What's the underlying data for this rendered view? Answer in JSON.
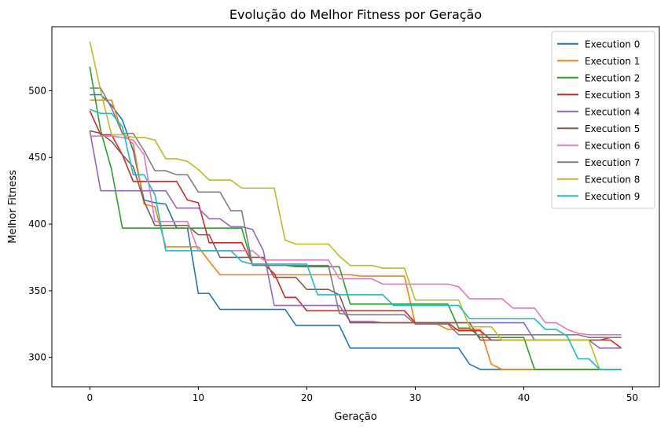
{
  "chart_data": {
    "type": "line",
    "title": "Evolução do Melhor Fitness por Geração",
    "xlabel": "Geração",
    "ylabel": "Melhor Fitness",
    "xlim": [
      -3.5,
      52.5
    ],
    "ylim": [
      278,
      548
    ],
    "xticks": [
      0,
      10,
      20,
      30,
      40,
      50
    ],
    "yticks": [
      300,
      350,
      400,
      450,
      500
    ],
    "grid": false,
    "legend_position": "top-right",
    "x": [
      0,
      1,
      2,
      3,
      4,
      5,
      6,
      7,
      8,
      9,
      10,
      11,
      12,
      13,
      14,
      15,
      16,
      17,
      18,
      19,
      20,
      21,
      22,
      23,
      24,
      25,
      26,
      27,
      28,
      29,
      30,
      31,
      32,
      33,
      34,
      35,
      36,
      37,
      38,
      39,
      40,
      41,
      42,
      43,
      44,
      45,
      46,
      47,
      48,
      49
    ],
    "series": [
      {
        "name": "Execution 0",
        "color": "#1f77b4",
        "values": [
          497,
          497,
          489,
          478,
          455,
          418,
          416,
          415,
          397,
          397,
          348,
          348,
          336,
          336,
          336,
          336,
          336,
          336,
          336,
          324,
          324,
          324,
          324,
          324,
          307,
          307,
          307,
          307,
          307,
          307,
          307,
          307,
          307,
          307,
          307,
          295,
          291,
          291,
          291,
          291,
          291,
          291,
          291,
          291,
          291,
          291,
          291,
          291,
          291,
          291
        ]
      },
      {
        "name": "Execution 1",
        "color": "#ff7f0e",
        "values": [
          493,
          493,
          493,
          468,
          460,
          415,
          413,
          383,
          383,
          383,
          383,
          372,
          362,
          362,
          362,
          362,
          362,
          362,
          362,
          362,
          362,
          362,
          362,
          362,
          362,
          361,
          361,
          361,
          361,
          361,
          325,
          325,
          325,
          321,
          321,
          321,
          321,
          295,
          291,
          291,
          291,
          291,
          291,
          291,
          291,
          291,
          291,
          291,
          291,
          291
        ]
      },
      {
        "name": "Execution 2",
        "color": "#2ca02c",
        "values": [
          518,
          470,
          441,
          397,
          397,
          397,
          397,
          397,
          397,
          397,
          397,
          397,
          397,
          397,
          397,
          369,
          369,
          369,
          369,
          368,
          368,
          368,
          368,
          368,
          340,
          340,
          340,
          340,
          340,
          340,
          340,
          340,
          340,
          340,
          322,
          322,
          315,
          315,
          315,
          315,
          315,
          291,
          291,
          291,
          291,
          291,
          291,
          291,
          291,
          291
        ]
      },
      {
        "name": "Execution 3",
        "color": "#d62728",
        "values": [
          485,
          467,
          467,
          452,
          432,
          432,
          432,
          432,
          432,
          418,
          416,
          386,
          386,
          386,
          386,
          370,
          370,
          363,
          345,
          345,
          335,
          335,
          335,
          335,
          335,
          335,
          335,
          335,
          335,
          335,
          326,
          326,
          326,
          326,
          320,
          320,
          320,
          313,
          313,
          313,
          313,
          313,
          313,
          313,
          313,
          313,
          313,
          313,
          313,
          307
        ]
      },
      {
        "name": "Execution 4",
        "color": "#9467bd",
        "values": [
          470,
          425,
          425,
          425,
          425,
          425,
          425,
          425,
          412,
          412,
          412,
          404,
          404,
          398,
          398,
          396,
          380,
          339,
          339,
          339,
          339,
          339,
          339,
          339,
          327,
          327,
          327,
          326,
          326,
          326,
          326,
          326,
          326,
          326,
          326,
          326,
          326,
          326,
          326,
          326,
          326,
          313,
          313,
          313,
          313,
          313,
          313,
          307,
          307,
          307
        ]
      },
      {
        "name": "Execution 5",
        "color": "#8c564b",
        "values": [
          470,
          468,
          462,
          452,
          443,
          417,
          399,
          399,
          399,
          399,
          392,
          392,
          375,
          375,
          375,
          375,
          375,
          360,
          360,
          360,
          351,
          351,
          351,
          347,
          326,
          326,
          326,
          326,
          326,
          326,
          326,
          326,
          326,
          326,
          326,
          326,
          313,
          313,
          313,
          313,
          313,
          313,
          313,
          313,
          313,
          313,
          313,
          313,
          315,
          315
        ]
      },
      {
        "name": "Execution 6",
        "color": "#e377c2",
        "values": [
          466,
          466,
          466,
          465,
          463,
          452,
          402,
          402,
          402,
          402,
          380,
          380,
          380,
          380,
          380,
          380,
          373,
          373,
          373,
          373,
          373,
          373,
          373,
          359,
          359,
          359,
          359,
          355,
          355,
          355,
          355,
          355,
          355,
          355,
          353,
          344,
          344,
          344,
          344,
          337,
          337,
          337,
          326,
          326,
          321,
          318,
          317,
          317,
          317,
          317
        ]
      },
      {
        "name": "Execution 7",
        "color": "#7f7f7f",
        "values": [
          502,
          502,
          487,
          468,
          468,
          455,
          440,
          440,
          437,
          437,
          424,
          424,
          424,
          410,
          410,
          369,
          369,
          369,
          369,
          369,
          369,
          369,
          369,
          333,
          332,
          332,
          332,
          332,
          332,
          332,
          325,
          325,
          325,
          325,
          317,
          317,
          317,
          317,
          317,
          317,
          317,
          317,
          317,
          317,
          317,
          317,
          315,
          315,
          315,
          315
        ]
      },
      {
        "name": "Execution 8",
        "color": "#bcbd22",
        "values": [
          537,
          500,
          467,
          467,
          465,
          465,
          463,
          449,
          449,
          447,
          441,
          433,
          433,
          433,
          427,
          427,
          427,
          427,
          388,
          385,
          385,
          385,
          385,
          376,
          369,
          369,
          369,
          367,
          367,
          367,
          343,
          343,
          343,
          343,
          343,
          323,
          323,
          323,
          313,
          313,
          313,
          313,
          313,
          313,
          313,
          313,
          313,
          291,
          291,
          291
        ]
      },
      {
        "name": "Execution 9",
        "color": "#17becf",
        "values": [
          486,
          483,
          483,
          473,
          437,
          437,
          422,
          380,
          380,
          380,
          380,
          380,
          380,
          380,
          372,
          370,
          370,
          370,
          370,
          370,
          370,
          347,
          347,
          347,
          347,
          347,
          347,
          347,
          339,
          339,
          339,
          339,
          339,
          339,
          339,
          329,
          329,
          329,
          329,
          329,
          329,
          329,
          321,
          321,
          316,
          299,
          299,
          291,
          291,
          291
        ]
      }
    ]
  }
}
